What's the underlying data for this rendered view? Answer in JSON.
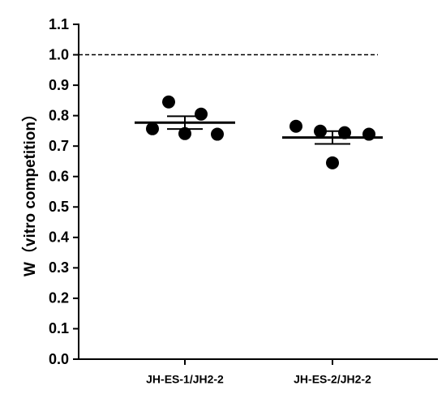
{
  "chart_data": {
    "type": "dot_plot",
    "y_label": "W（vitro competition）",
    "categories": [
      "JH-ES-1/JH2-2",
      "JH-ES-2/JH2-2"
    ],
    "groups": [
      {
        "values": [
          0.757,
          0.845,
          0.741,
          0.805,
          0.739
        ],
        "mean": 0.777,
        "sem": 0.021
      },
      {
        "values": [
          0.765,
          0.749,
          0.645,
          0.744,
          0.739
        ],
        "mean": 0.728,
        "sem": 0.021
      }
    ],
    "color": "#000000",
    "reference_line": 1,
    "ylim": [
      0,
      1.1
    ],
    "yticks": [
      {
        "value": 0,
        "label": "0.0"
      },
      0.1,
      0.2,
      0.3,
      0.4,
      0.5,
      0.6,
      0.7,
      0.8,
      0.9,
      {
        "value": 1,
        "label": "1.0"
      },
      1.1
    ]
  }
}
